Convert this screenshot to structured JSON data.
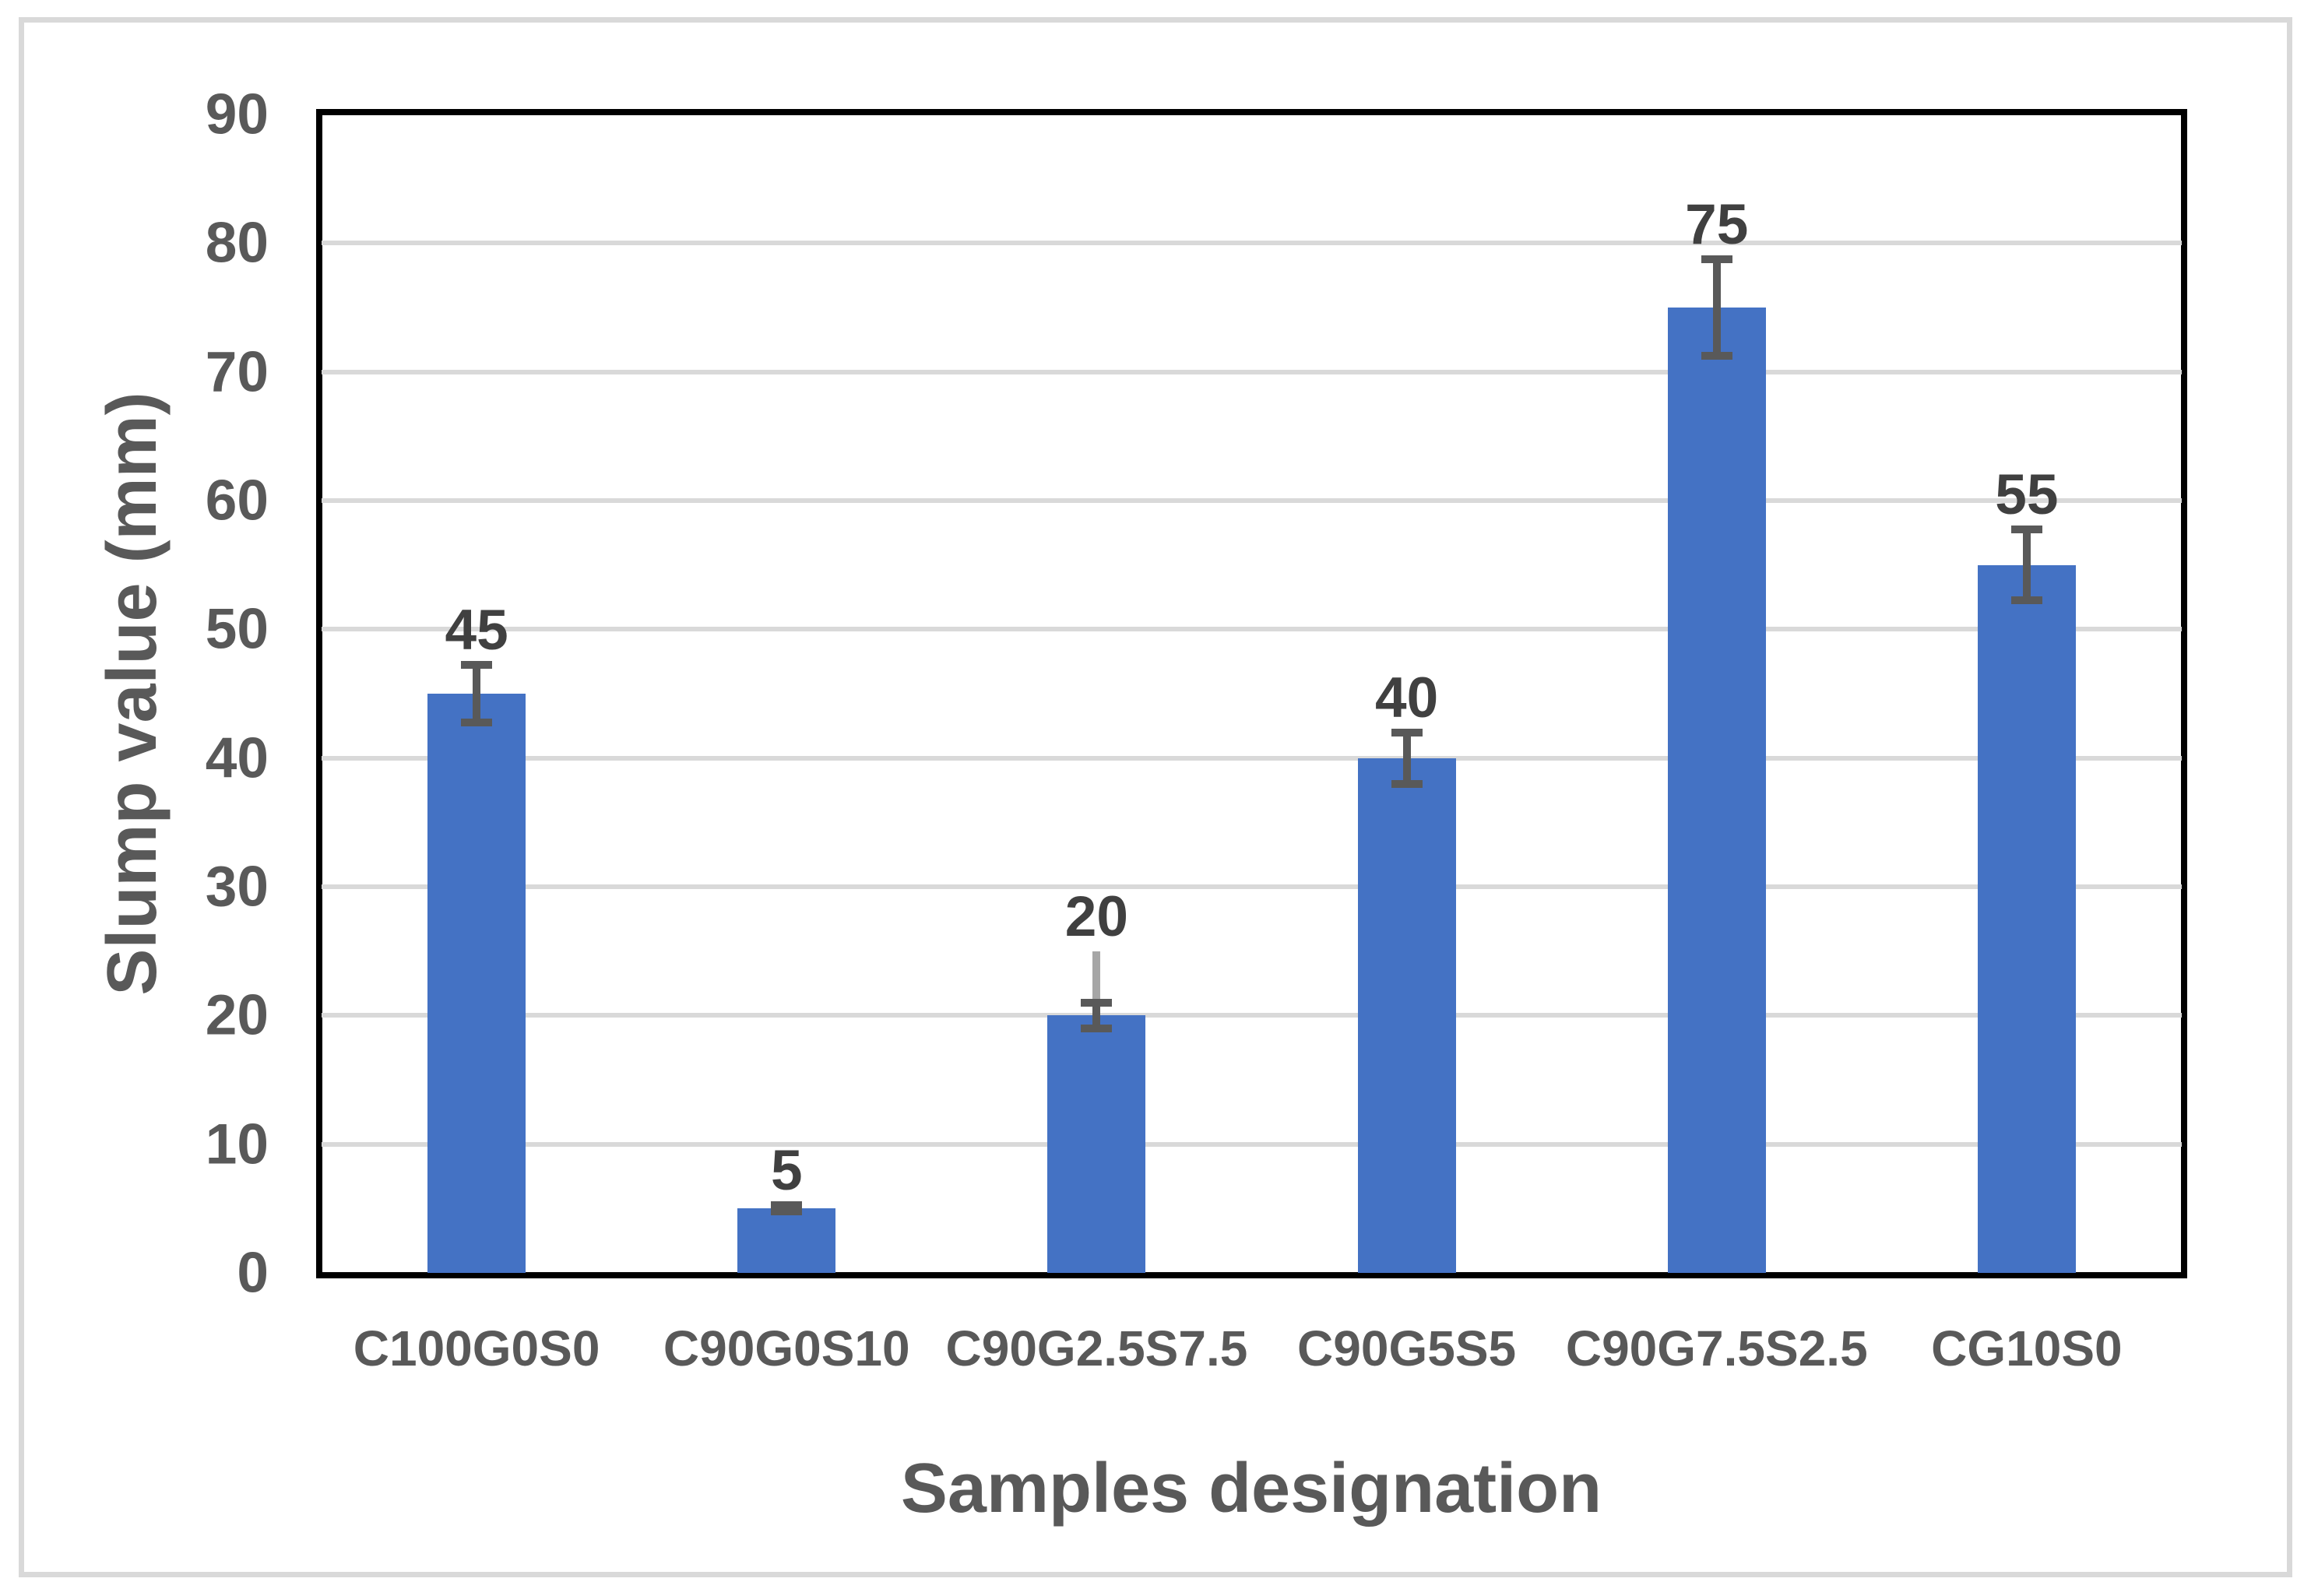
{
  "figure": {
    "background": "#ffffff",
    "border_color": "#d9d9d9"
  },
  "chart_data": {
    "type": "bar",
    "title": "",
    "xlabel": "Samples designation",
    "ylabel": "Slump value (mm)",
    "categories": [
      "C100G0S0",
      "C90G0S10",
      "C90G2.5S7.5",
      "C90G5S5",
      "C90G7.5S2.5",
      "CG10S0"
    ],
    "values": [
      45,
      5,
      20,
      40,
      75,
      55
    ],
    "data_labels": [
      "45",
      "5",
      "20",
      "40",
      "75",
      "55"
    ],
    "error_bars": {
      "type": "percentage",
      "percent": 5,
      "plus_minus": [
        2.25,
        0.25,
        1,
        2,
        3.75,
        2.75
      ]
    },
    "extra_error_line": {
      "category_index": 2,
      "from": 19,
      "to": 25,
      "color": "#a6a6a6"
    },
    "ylim": [
      0,
      90
    ],
    "yticks": [
      0,
      10,
      20,
      30,
      40,
      50,
      60,
      70,
      80,
      90
    ],
    "gridline_ticks": [
      10,
      20,
      30,
      40,
      50,
      60,
      70,
      80
    ],
    "grid": true,
    "legend": false,
    "bar_color": "#4472c4",
    "gridline_color": "#d9d9d9",
    "axis_line_color": "#000000",
    "tick_label_color": "#595959",
    "category_label_color": "#595959",
    "data_label_color": "#404040",
    "axis_title_color": "#595959",
    "error_bar_color": "#595959"
  }
}
